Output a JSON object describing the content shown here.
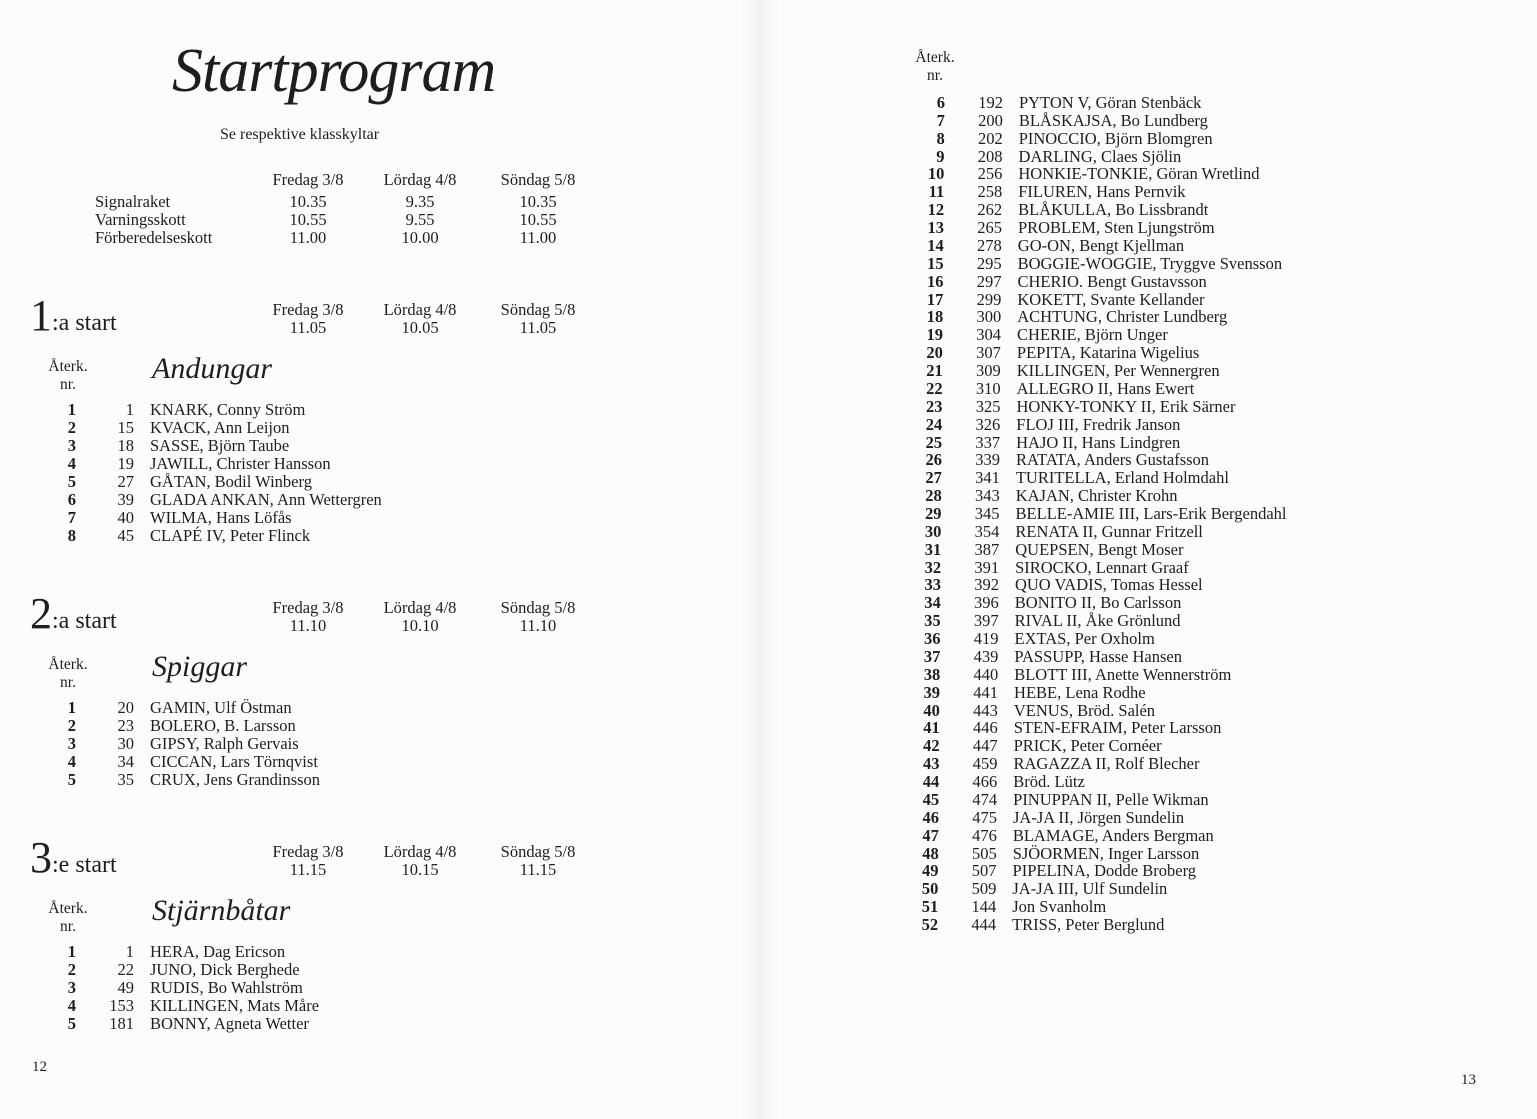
{
  "left_page": {
    "title": "Startprogram",
    "subtitle": "Se respektive klasskyltar",
    "schedule": {
      "days": [
        "Fredag 3/8",
        "Lördag 4/8",
        "Söndag 5/8"
      ],
      "rows": [
        {
          "label": "Signalraket",
          "times": [
            "10.35",
            "9.35",
            "10.35"
          ]
        },
        {
          "label": "Varningsskott",
          "times": [
            "10.55",
            "9.55",
            "10.55"
          ]
        },
        {
          "label": "Förberedelseskott",
          "times": [
            "11.00",
            "10.00",
            "11.00"
          ]
        }
      ]
    },
    "starts": [
      {
        "numeral": "1",
        "suffix": ":a start",
        "days": [
          "Fredag 3/8",
          "Lördag 4/8",
          "Söndag 5/8"
        ],
        "times": [
          "11.05",
          "10.05",
          "11.05"
        ],
        "aterk_label": "Återk.",
        "nr_label": "nr.",
        "class_name": "Andungar",
        "entries": [
          [
            "1",
            "1",
            "KNARK, Conny Ström"
          ],
          [
            "2",
            "15",
            "KVACK, Ann Leijon"
          ],
          [
            "3",
            "18",
            "SASSE, Björn Taube"
          ],
          [
            "4",
            "19",
            "JAWILL, Christer Hansson"
          ],
          [
            "5",
            "27",
            "GÅTAN, Bodil Winberg"
          ],
          [
            "6",
            "39",
            "GLADA ANKAN, Ann Wettergren"
          ],
          [
            "7",
            "40",
            "WILMA, Hans Löfås"
          ],
          [
            "8",
            "45",
            "CLAPÉ IV, Peter Flinck"
          ]
        ]
      },
      {
        "numeral": "2",
        "suffix": ":a start",
        "days": [
          "Fredag 3/8",
          "Lördag 4/8",
          "Söndag 5/8"
        ],
        "times": [
          "11.10",
          "10.10",
          "11.10"
        ],
        "aterk_label": "Återk.",
        "nr_label": "nr.",
        "class_name": "Spiggar",
        "entries": [
          [
            "1",
            "20",
            "GAMIN, Ulf Östman"
          ],
          [
            "2",
            "23",
            "BOLERO, B. Larsson"
          ],
          [
            "3",
            "30",
            "GIPSY, Ralph Gervais"
          ],
          [
            "4",
            "34",
            "CICCAN, Lars Törnqvist"
          ],
          [
            "5",
            "35",
            "CRUX, Jens Grandinsson"
          ]
        ]
      },
      {
        "numeral": "3",
        "suffix": ":e start",
        "days": [
          "Fredag 3/8",
          "Lördag 4/8",
          "Söndag 5/8"
        ],
        "times": [
          "11.15",
          "10.15",
          "11.15"
        ],
        "aterk_label": "Återk.",
        "nr_label": "nr.",
        "class_name": "Stjärnbåtar",
        "entries": [
          [
            "1",
            "1",
            "HERA, Dag Ericson"
          ],
          [
            "2",
            "22",
            "JUNO, Dick Berghede"
          ],
          [
            "3",
            "49",
            "RUDIS, Bo Wahlström"
          ],
          [
            "4",
            "153",
            "KILLINGEN, Mats Måre"
          ],
          [
            "5",
            "181",
            "BONNY, Agneta Wetter"
          ]
        ]
      }
    ],
    "page_number": "12"
  },
  "right_page": {
    "aterk_label": "Återk.",
    "nr_label": "nr.",
    "entries": [
      [
        "6",
        "192",
        "PYTON V, Göran Stenbäck"
      ],
      [
        "7",
        "200",
        "BLÅSKAJSA, Bo Lundberg"
      ],
      [
        "8",
        "202",
        "PINOCCIO, Björn Blomgren"
      ],
      [
        "9",
        "208",
        "DARLING, Claes Sjölin"
      ],
      [
        "10",
        "256",
        "HONKIE-TONKIE, Göran Wretlind"
      ],
      [
        "11",
        "258",
        "FILUREN, Hans Pernvik"
      ],
      [
        "12",
        "262",
        "BLÅKULLA, Bo Lissbrandt"
      ],
      [
        "13",
        "265",
        "PROBLEM, Sten Ljungström"
      ],
      [
        "14",
        "278",
        "GO-ON, Bengt Kjellman"
      ],
      [
        "15",
        "295",
        "BOGGIE-WOGGIE, Tryggve Svensson"
      ],
      [
        "16",
        "297",
        "CHERIO. Bengt Gustavsson"
      ],
      [
        "17",
        "299",
        "KOKETT, Svante Kellander"
      ],
      [
        "18",
        "300",
        "ACHTUNG, Christer Lundberg"
      ],
      [
        "19",
        "304",
        "CHERIE, Björn Unger"
      ],
      [
        "20",
        "307",
        "PEPITA, Katarina Wigelius"
      ],
      [
        "21",
        "309",
        "KILLINGEN, Per Wennergren"
      ],
      [
        "22",
        "310",
        "ALLEGRO II, Hans Ewert"
      ],
      [
        "23",
        "325",
        "HONKY-TONKY II, Erik Särner"
      ],
      [
        "24",
        "326",
        "FLOJ III, Fredrik Janson"
      ],
      [
        "25",
        "337",
        "HAJO II, Hans Lindgren"
      ],
      [
        "26",
        "339",
        "RATATA, Anders Gustafsson"
      ],
      [
        "27",
        "341",
        "TURITELLA, Erland Holmdahl"
      ],
      [
        "28",
        "343",
        "KAJAN, Christer Krohn"
      ],
      [
        "29",
        "345",
        "BELLE-AMIE III, Lars-Erik Bergendahl"
      ],
      [
        "30",
        "354",
        "RENATA II, Gunnar Fritzell"
      ],
      [
        "31",
        "387",
        "QUEPSEN, Bengt Moser"
      ],
      [
        "32",
        "391",
        "SIROCKO, Lennart Graaf"
      ],
      [
        "33",
        "392",
        "QUO VADIS, Tomas Hessel"
      ],
      [
        "34",
        "396",
        "BONITO II, Bo Carlsson"
      ],
      [
        "35",
        "397",
        "RIVAL II, Åke Grönlund"
      ],
      [
        "36",
        "419",
        "EXTAS, Per Oxholm"
      ],
      [
        "37",
        "439",
        "PASSUPP, Hasse Hansen"
      ],
      [
        "38",
        "440",
        "BLOTT III, Anette Wennerström"
      ],
      [
        "39",
        "441",
        "HEBE, Lena Rodhe"
      ],
      [
        "40",
        "443",
        "VENUS, Bröd. Salén"
      ],
      [
        "41",
        "446",
        "STEN-EFRAIM, Peter Larsson"
      ],
      [
        "42",
        "447",
        "PRICK, Peter Cornéer"
      ],
      [
        "43",
        "459",
        "RAGAZZA II, Rolf Blecher"
      ],
      [
        "44",
        "466",
        "Bröd. Lütz"
      ],
      [
        "45",
        "474",
        "PINUPPAN II, Pelle Wikman"
      ],
      [
        "46",
        "475",
        "JA-JA II, Jörgen Sundelin"
      ],
      [
        "47",
        "476",
        "BLAMAGE, Anders Bergman"
      ],
      [
        "48",
        "505",
        "SJÖORMEN, Inger Larsson"
      ],
      [
        "49",
        "507",
        "PIPELINA, Dodde Broberg"
      ],
      [
        "50",
        "509",
        "JA-JA III, Ulf Sundelin"
      ],
      [
        "51",
        "144",
        "Jon Svanholm"
      ],
      [
        "52",
        "444",
        "TRISS, Peter Berglund"
      ]
    ],
    "page_number": "13"
  }
}
